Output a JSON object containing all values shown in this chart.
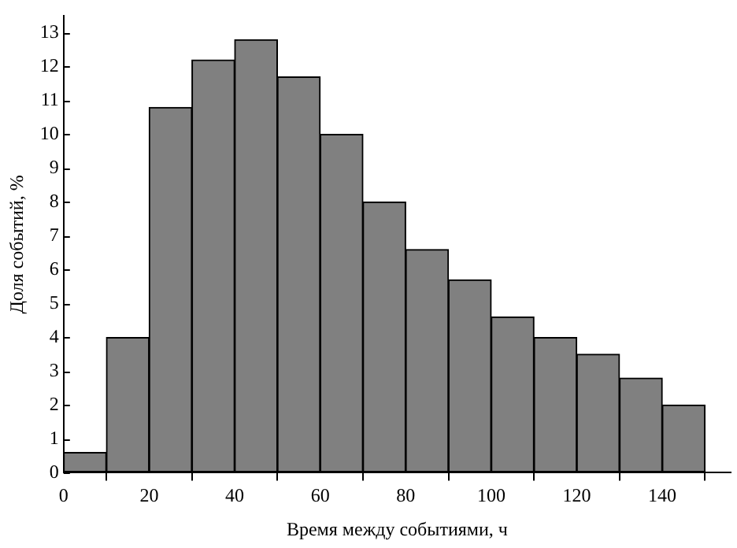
{
  "chart_data": {
    "type": "histogram",
    "xlabel": "Время между событиями, ч",
    "ylabel": "Доля событий, %",
    "bins": [
      0,
      10,
      20,
      30,
      40,
      50,
      60,
      70,
      80,
      90,
      100,
      110,
      120,
      130,
      140,
      150
    ],
    "values": [
      0.6,
      4.0,
      10.8,
      12.2,
      12.8,
      11.7,
      10.0,
      8.0,
      6.6,
      5.7,
      4.6,
      4.0,
      3.5,
      2.8,
      2.0
    ],
    "color": "#808080",
    "xlim": [
      0,
      156
    ],
    "xticks": [
      0,
      20,
      40,
      60,
      80,
      100,
      120,
      140
    ],
    "ylim": [
      0,
      13.5
    ],
    "yticks": [
      0,
      1,
      2,
      3,
      4,
      5,
      6,
      7,
      8,
      9,
      10,
      11,
      12,
      13
    ],
    "grid": false,
    "legend": false
  }
}
